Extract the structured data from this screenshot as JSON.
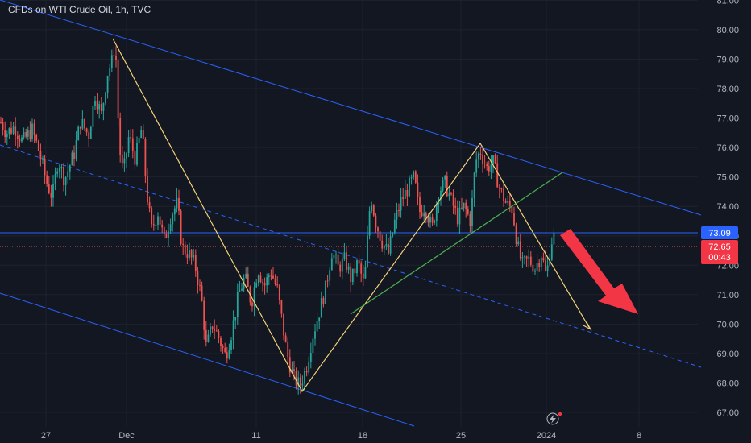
{
  "header": {
    "title": "CFDs on WTI Crude Oil, 1h, TVC"
  },
  "colors": {
    "background": "#131722",
    "grid": "#1e222d",
    "up": "#26a69a",
    "down": "#ef5350",
    "channel": "#2962ff",
    "zigzag": "#f4d27a",
    "trendline": "#4caf50",
    "arrow": "#f23645",
    "axis_text": "#b2b5be"
  },
  "price_badges": {
    "level": "73.09",
    "last_price": "72.65",
    "countdown": "00:43"
  },
  "footer_icon": "lightning-icon",
  "chart_data": {
    "type": "candlestick",
    "title": "CFDs on WTI Crude Oil, 1h, TVC",
    "y_ticks": [
      "67.00",
      "68.00",
      "69.00",
      "70.00",
      "71.00",
      "72.00",
      "73.00",
      "74.00",
      "75.00",
      "76.00",
      "77.00",
      "78.00",
      "79.00",
      "80.00",
      "81.00"
    ],
    "x_ticks": [
      "27",
      "Dec",
      "11",
      "18",
      "25",
      "2024",
      "8"
    ],
    "ylim": [
      66.6,
      81.0
    ],
    "grid": true,
    "horizontal_level": 73.09,
    "last_price": 72.65,
    "price_path": [
      [
        0,
        76.9
      ],
      [
        8,
        76.5
      ],
      [
        18,
        76.7
      ],
      [
        28,
        76.2
      ],
      [
        40,
        76.6
      ],
      [
        48,
        75.9
      ],
      [
        58,
        74.8
      ],
      [
        65,
        74.3
      ],
      [
        72,
        75.6
      ],
      [
        80,
        74.9
      ],
      [
        92,
        75.8
      ],
      [
        100,
        76.9
      ],
      [
        110,
        76.4
      ],
      [
        118,
        77.8
      ],
      [
        126,
        77.1
      ],
      [
        133,
        78.5
      ],
      [
        140,
        79.0
      ],
      [
        143,
        79.7
      ],
      [
        148,
        76.0
      ],
      [
        153,
        75.1
      ],
      [
        160,
        76.4
      ],
      [
        168,
        75.6
      ],
      [
        176,
        76.7
      ],
      [
        182,
        74.5
      ],
      [
        188,
        73.2
      ],
      [
        196,
        73.8
      ],
      [
        204,
        72.8
      ],
      [
        212,
        73.7
      ],
      [
        220,
        74.1
      ],
      [
        226,
        72.6
      ],
      [
        234,
        72.4
      ],
      [
        242,
        72.0
      ],
      [
        250,
        70.9
      ],
      [
        256,
        69.2
      ],
      [
        264,
        70.0
      ],
      [
        272,
        69.5
      ],
      [
        280,
        68.9
      ],
      [
        288,
        69.8
      ],
      [
        296,
        71.0
      ],
      [
        304,
        71.6
      ],
      [
        312,
        70.7
      ],
      [
        320,
        71.9
      ],
      [
        328,
        71.3
      ],
      [
        336,
        71.8
      ],
      [
        344,
        71.2
      ],
      [
        350,
        70.1
      ],
      [
        356,
        69.0
      ],
      [
        364,
        68.2
      ],
      [
        372,
        67.9
      ],
      [
        380,
        68.5
      ],
      [
        388,
        69.6
      ],
      [
        396,
        70.4
      ],
      [
        404,
        71.2
      ],
      [
        412,
        72.5
      ],
      [
        420,
        71.9
      ],
      [
        428,
        72.2
      ],
      [
        436,
        71.5
      ],
      [
        444,
        72.1
      ],
      [
        452,
        71.3
      ],
      [
        460,
        74.4
      ],
      [
        466,
        73.5
      ],
      [
        474,
        72.8
      ],
      [
        482,
        72.4
      ],
      [
        490,
        73.5
      ],
      [
        498,
        74.2
      ],
      [
        506,
        74.6
      ],
      [
        514,
        75.0
      ],
      [
        520,
        73.8
      ],
      [
        528,
        74.0
      ],
      [
        536,
        73.2
      ],
      [
        544,
        74.5
      ],
      [
        552,
        74.8
      ],
      [
        560,
        74.2
      ],
      [
        568,
        73.6
      ],
      [
        576,
        74.0
      ],
      [
        584,
        73.5
      ],
      [
        590,
        75.5
      ],
      [
        596,
        75.9
      ],
      [
        604,
        75.3
      ],
      [
        612,
        75.5
      ],
      [
        620,
        74.6
      ],
      [
        628,
        74.1
      ],
      [
        636,
        73.9
      ],
      [
        642,
        72.7
      ],
      [
        648,
        72.0
      ],
      [
        656,
        72.2
      ],
      [
        664,
        71.9
      ],
      [
        672,
        72.4
      ],
      [
        678,
        71.6
      ],
      [
        684,
        72.8
      ],
      [
        688,
        73.0
      ]
    ],
    "annotations": [
      {
        "type": "parallel-channel",
        "color": "#2962ff"
      },
      {
        "type": "zigzag",
        "color": "#f4d27a"
      },
      {
        "type": "trendline",
        "color": "#4caf50"
      },
      {
        "type": "arrow",
        "direction": "down",
        "color": "#f23645"
      }
    ]
  }
}
